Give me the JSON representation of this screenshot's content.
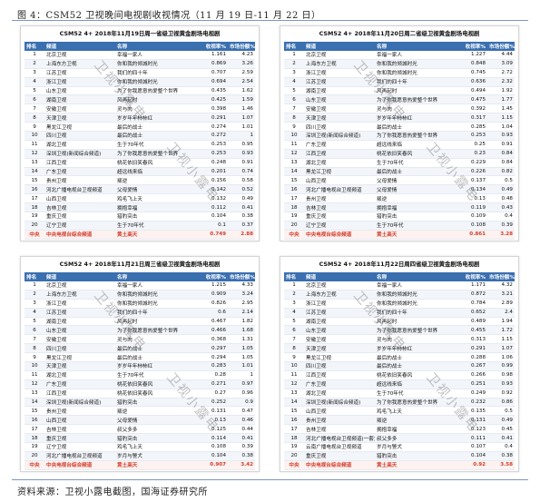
{
  "figure": {
    "caption": "图 4：CSM52 卫视晚间电视剧收视情况（11 月 19 日-11 月 22 日）",
    "source": "资料来源：卫视小露电截图，国海证券研究所"
  },
  "columns": [
    "排名",
    "频道",
    "名称",
    "收视率%",
    "市场份额%"
  ],
  "panels": [
    {
      "title": "CSM52 4+ 2018年11月19日周一省级卫视黄金剧场电视剧",
      "rows": [
        [
          "1",
          "北京卫视",
          "幸福一家人",
          "1.161",
          "4.23"
        ],
        [
          "2",
          "上海东方卫视",
          "你和我的倾城时光",
          "0.869",
          "3.26"
        ],
        [
          "3",
          "江苏卫视",
          "我们的四十年",
          "0.707",
          "2.59"
        ],
        [
          "4",
          "浙江卫视",
          "你和我的倾城时光",
          "0.694",
          "2.54"
        ],
        [
          "5",
          "山东卫视",
          "为了你我愿意热爱整个世界",
          "0.435",
          "1.62"
        ],
        [
          "6",
          "湖南卫视",
          "风再起时",
          "0.425",
          "1.59"
        ],
        [
          "7",
          "安徽卫视",
          "灵与肉",
          "0.398",
          "1.46"
        ],
        [
          "8",
          "天津卫视",
          "岁岁年年柿柿红",
          "0.291",
          "1.07"
        ],
        [
          "9",
          "黑龙江卫视",
          "最后的战士",
          "0.274",
          "1.01"
        ],
        [
          "10",
          "四川卫视",
          "最后的战士",
          "0.272",
          "1"
        ],
        [
          "11",
          "湖北卫视",
          "生于70年代",
          "0.253",
          "0.95"
        ],
        [
          "12",
          "深圳卫视(新闻综合频道)",
          "为了你我愿意热爱整个世界",
          "0.253",
          "0.93"
        ],
        [
          "13",
          "江西卫视",
          "桃花依旧笑春风",
          "0.248",
          "0.91"
        ],
        [
          "14",
          "广东卫视",
          "超远线来临",
          "0.201",
          "0.74"
        ],
        [
          "15",
          "贵州卫视",
          "叛逆",
          "0.156",
          "0.58"
        ],
        [
          "16",
          "河北广播电视台卫视频道",
          "父母爱情",
          "0.142",
          "0.52"
        ],
        [
          "17",
          "山西卫视",
          "鸡毛飞上天",
          "0.132",
          "0.49"
        ],
        [
          "18",
          "吉林卫视",
          "拥抱幸福",
          "0.112",
          "0.41"
        ],
        [
          "19",
          "重庆卫视",
          "猎豹突击",
          "0.104",
          "0.38"
        ],
        [
          "20",
          "辽宁卫视",
          "生于70年代",
          "0.1",
          "0.37"
        ],
        [
          "中央",
          "中央电视台综合频道",
          "黄土高天",
          "0.749",
          "2.88"
        ]
      ]
    },
    {
      "title": "CSM52 4+ 2018年11月20日周二省级卫视黄金剧场电视剧",
      "rows": [
        [
          "1",
          "北京卫视",
          "幸福一家人",
          "1.227",
          "4.44"
        ],
        [
          "2",
          "上海东方卫视",
          "你和我的倾城时光",
          "0.848",
          "3.09"
        ],
        [
          "3",
          "浙江卫视",
          "你和我的倾城时光",
          "0.745",
          "2.72"
        ],
        [
          "4",
          "江苏卫视",
          "我们的四十年",
          "0.636",
          "2.32"
        ],
        [
          "5",
          "湖南卫视",
          "风再起时",
          "0.494",
          "1.92"
        ],
        [
          "6",
          "山东卫视",
          "为了你我愿意热爱整个世界",
          "0.475",
          "1.77"
        ],
        [
          "7",
          "安徽卫视",
          "灵与肉",
          "0.392",
          "1.45"
        ],
        [
          "8",
          "天津卫视",
          "岁岁年年柿柿红",
          "0.317",
          "1.15"
        ],
        [
          "9",
          "四川卫视",
          "最后的战士",
          "0.285",
          "1.04"
        ],
        [
          "10",
          "深圳卫视(新闻综合频道)",
          "为了你我愿意热爱整个世界",
          "0.253",
          "0.93"
        ],
        [
          "11",
          "广东卫视",
          "超远线来临",
          "0.25",
          "0.91"
        ],
        [
          "12",
          "江西卫视",
          "桃花依旧笑春风",
          "0.23",
          "0.84"
        ],
        [
          "13",
          "湖北卫视",
          "生于70年代",
          "0.229",
          "0.84"
        ],
        [
          "14",
          "黑龙江卫视",
          "最后的战士",
          "0.226",
          "0.82"
        ],
        [
          "15",
          "山西卫视",
          "父母爱情",
          "0.137",
          "0.5"
        ],
        [
          "16",
          "河北广播电视台卫视频道",
          "父母爱情",
          "0.134",
          "0.49"
        ],
        [
          "17",
          "贵州卫视",
          "叛逆",
          "0.13",
          "0.48"
        ],
        [
          "18",
          "吉林卫视",
          "拥抱幸福",
          "0.119",
          "0.43"
        ],
        [
          "19",
          "重庆卫视",
          "猎豹突击",
          "0.109",
          "0.4"
        ],
        [
          "20",
          "辽宁卫视",
          "生于70年代",
          "0.108",
          "0.39"
        ],
        [
          "中央",
          "中央电视台综合频道",
          "黄土高天",
          "0.861",
          "3.28"
        ]
      ]
    },
    {
      "title": "CSM52 4+ 2018年11月21日周三省级卫视黄金剧场电视剧",
      "rows": [
        [
          "1",
          "北京卫视",
          "幸福一家人",
          "1.215",
          "4.33"
        ],
        [
          "2",
          "上海东方卫视",
          "你和我的倾城时光",
          "0.909",
          "3.24"
        ],
        [
          "3",
          "浙江卫视",
          "你和我的倾城时光",
          "0.826",
          "2.95"
        ],
        [
          "4",
          "江苏卫视",
          "我们的四十年",
          "0.6",
          "2.14"
        ],
        [
          "5",
          "湖南卫视",
          "风再起时",
          "0.467",
          "1.82"
        ],
        [
          "6",
          "山东卫视",
          "为了你我愿意热爱整个世界",
          "0.466",
          "1.68"
        ],
        [
          "7",
          "安徽卫视",
          "灵与肉",
          "0.368",
          "1.31"
        ],
        [
          "8",
          "四川卫视",
          "最后的战士",
          "0.297",
          "1.05"
        ],
        [
          "9",
          "黑龙江卫视",
          "最后的战士",
          "0.294",
          "1.05"
        ],
        [
          "10",
          "天津卫视",
          "岁岁年年柿柿红",
          "0.283",
          "1.01"
        ],
        [
          "11",
          "湖北卫视",
          "生于70年代",
          "0.28",
          "1"
        ],
        [
          "12",
          "广东卫视",
          "桃花依旧笑春风",
          "0.271",
          "0.97"
        ],
        [
          "13",
          "江西卫视",
          "桃花依旧笑春风",
          "0.27",
          "0.96"
        ],
        [
          "14",
          "深圳卫视(新闻综合频道)",
          "猎豹突击",
          "0.252",
          "0.9"
        ],
        [
          "15",
          "贵州卫视",
          "叛逆",
          "0.131",
          "0.47"
        ],
        [
          "16",
          "山西卫视",
          "父母爱情",
          "0.13",
          "0.46"
        ],
        [
          "17",
          "吉林卫视",
          "叔父多多",
          "0.125",
          "0.44"
        ],
        [
          "18",
          "重庆卫视",
          "猎豹突击",
          "0.114",
          "0.41"
        ],
        [
          "19",
          "辽宁卫视",
          "鸡毛飞上天",
          "0.108",
          "0.39"
        ],
        [
          "20",
          "河北广播电视台卫视频道",
          "岁月与警犬",
          "0.104",
          "0.38"
        ],
        [
          "中央",
          "中央电视台综合频道",
          "黄土高天",
          "0.907",
          "3.42"
        ]
      ]
    },
    {
      "title": "CSM52 4+ 2018年11月22日周四省级卫视黄金剧场电视剧",
      "rows": [
        [
          "1",
          "北京卫视",
          "幸福一家人",
          "1.171",
          "4.32"
        ],
        [
          "2",
          "上海东方卫视",
          "你和我的倾城时光",
          "0.872",
          "3.21"
        ],
        [
          "3",
          "浙江卫视",
          "你和我的倾城时光",
          "0.784",
          "2.89"
        ],
        [
          "4",
          "江苏卫视",
          "我们的四十年",
          "0.652",
          "2.4"
        ],
        [
          "5",
          "湖南卫视",
          "风再起时",
          "0.489",
          "1.94"
        ],
        [
          "6",
          "山东卫视",
          "为了你我愿意热爱整个世界",
          "0.455",
          "1.72"
        ],
        [
          "7",
          "安徽卫视",
          "灵与肉",
          "0.313",
          "1.15"
        ],
        [
          "8",
          "天津卫视",
          "岁岁年年柿柿红",
          "0.291",
          "1.07"
        ],
        [
          "9",
          "黑龙江卫视",
          "最后的战士",
          "0.288",
          "1.06"
        ],
        [
          "10",
          "四川卫视",
          "最后的战士",
          "0.267",
          "0.99"
        ],
        [
          "11",
          "江西卫视",
          "桃花依旧笑春风",
          "0.266",
          "0.98"
        ],
        [
          "12",
          "广东卫视",
          "超远线来临",
          "0.251",
          "0.93"
        ],
        [
          "13",
          "湖北卫视",
          "生于70年代",
          "0.249",
          "0.92"
        ],
        [
          "14",
          "深圳卫视(新闻综合频道)",
          "为了你我愿意热爱整个世界",
          "0.232",
          "0.86"
        ],
        [
          "15",
          "山西卫视",
          "鸡毛飞上天",
          "0.135",
          "0.5"
        ],
        [
          "16",
          "贵州卫视",
          "叛逆",
          "0.131",
          "0.49"
        ],
        [
          "17",
          "吉林卫视",
          "拥抱幸福",
          "0.123",
          "0.45"
        ],
        [
          "18",
          "河北广播电视台卫视频道(一套)",
          "叔父多多",
          "0.111",
          "0.41"
        ],
        [
          "19",
          "云南广播电视台卫视频道",
          "岁月与警犬",
          "0.107",
          "0.4"
        ],
        [
          "20",
          "重庆卫视",
          "猎豹突击",
          "0.104",
          "0.38"
        ],
        [
          "中央",
          "中央电视台综合频道",
          "黄土高天",
          "0.92",
          "3.58"
        ]
      ]
    }
  ],
  "watermark": "卫视小露电"
}
